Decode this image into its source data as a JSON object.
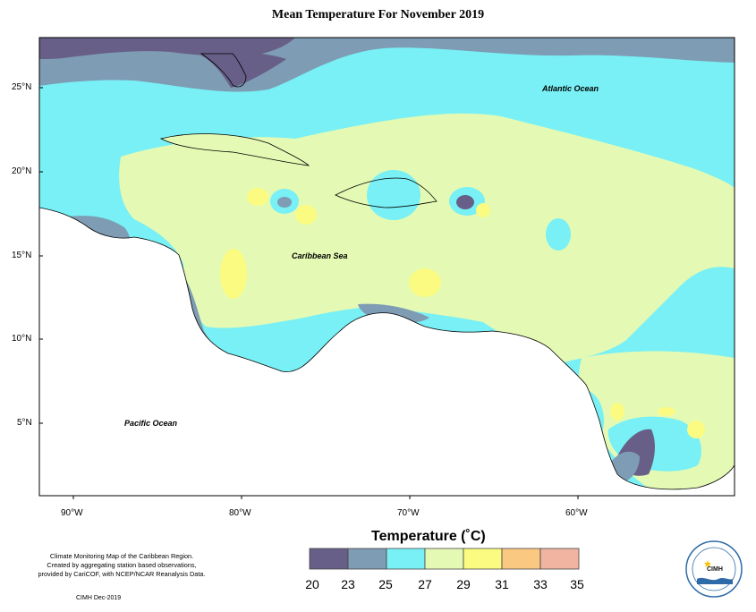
{
  "title": "Mean Temperature For November 2019",
  "ocean_labels": {
    "atlantic": "Atlantic Ocean",
    "caribbean": "Caribbean Sea",
    "pacific": "Pacific Ocean"
  },
  "axes": {
    "latitude_ticks": [
      "25°N",
      "20°N",
      "15°N",
      "10°N",
      "5°N"
    ],
    "longitude_ticks": [
      "90°W",
      "80°W",
      "70°W",
      "60°W"
    ]
  },
  "legend": {
    "title": "Temperature (˚C)",
    "labels": [
      "20",
      "23",
      "25",
      "27",
      "29",
      "31",
      "33",
      "35"
    ],
    "bins": [
      {
        "from": 20,
        "to": 23,
        "color": "#675f87"
      },
      {
        "from": 23,
        "to": 25,
        "color": "#7e9cb4"
      },
      {
        "from": 25,
        "to": 27,
        "color": "#78f0f5"
      },
      {
        "from": 27,
        "to": 29,
        "color": "#e4fab4"
      },
      {
        "from": 29,
        "to": 31,
        "color": "#fbfb82"
      },
      {
        "from": 31,
        "to": 33,
        "color": "#fbc882"
      },
      {
        "from": 33,
        "to": 35,
        "color": "#f0b4a0"
      }
    ]
  },
  "footnote": {
    "lines": [
      "Climate Monitoring Map of the Caribbean Region.",
      "Created by aggregating station based observations,",
      "provided by CariCOF, with NCEP/NCAR Reanalysis Data."
    ],
    "credit": "CIMH Dec-2019"
  },
  "logo": {
    "text": "CIMH",
    "icon": "sun-icon"
  }
}
